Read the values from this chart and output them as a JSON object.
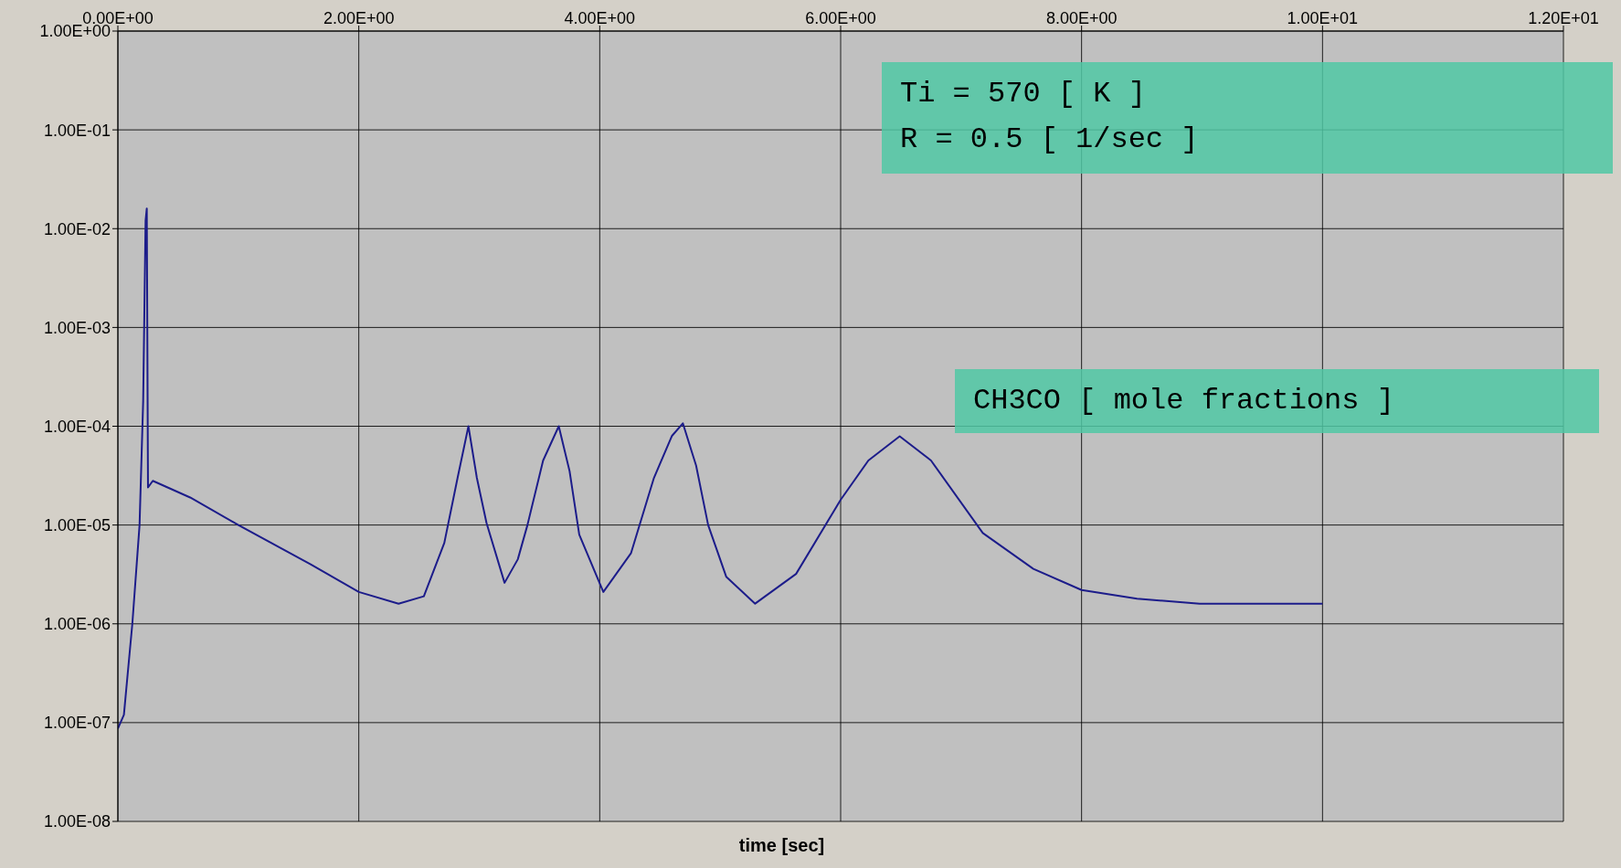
{
  "chart_data": {
    "type": "line",
    "xlabel": "time [sec]",
    "x": [
      0,
      0.05,
      0.12,
      0.18,
      0.21,
      0.23,
      0.24,
      0.25,
      0.29,
      0.6,
      1.0,
      1.6,
      2.0,
      2.33,
      2.54,
      2.71,
      2.82,
      2.91,
      2.98,
      3.06,
      3.21,
      3.32,
      3.4,
      3.53,
      3.66,
      3.75,
      3.83,
      4.03,
      4.26,
      4.45,
      4.6,
      4.69,
      4.8,
      4.9,
      5.05,
      5.29,
      5.63,
      6.0,
      6.23,
      6.49,
      6.75,
      7.18,
      7.6,
      8.0,
      8.46,
      8.98,
      10.0
    ],
    "series": [
      {
        "color": "#1c1c8a",
        "values": [
          8.7e-08,
          1.2e-07,
          1e-06,
          1e-05,
          0.00018,
          0.012,
          0.016,
          2.4e-05,
          2.8e-05,
          1.9e-05,
          1e-05,
          4e-06,
          2.1e-06,
          1.6e-06,
          1.9e-06,
          6.6e-06,
          3e-05,
          0.0001,
          3e-05,
          1.05e-05,
          2.6e-06,
          4.5e-06,
          1e-05,
          4.5e-05,
          0.0001,
          3.5e-05,
          8e-06,
          2.1e-06,
          5.2e-06,
          3e-05,
          8e-05,
          0.000107,
          4e-05,
          1e-05,
          3e-06,
          1.6e-06,
          3.2e-06,
          1.8e-05,
          4.5e-05,
          7.9e-05,
          4.5e-05,
          8.3e-06,
          3.6e-06,
          2.2e-06,
          1.8e-06,
          1.6e-06,
          1.6e-06
        ]
      }
    ],
    "log": "y",
    "xlim": [
      0,
      12
    ],
    "ylim": [
      1e-08,
      1
    ],
    "xticks": [
      {
        "value": 0,
        "label": "0.00E+00"
      },
      {
        "value": 2,
        "label": "2.00E+00"
      },
      {
        "value": 4,
        "label": "4.00E+00"
      },
      {
        "value": 6,
        "label": "6.00E+00"
      },
      {
        "value": 8,
        "label": "8.00E+00"
      },
      {
        "value": 10,
        "label": "1.00E+01"
      },
      {
        "value": 12,
        "label": "1.20E+01"
      }
    ],
    "yticks": [
      {
        "value": 1e-08,
        "label": "1.00E-08"
      },
      {
        "value": 1e-07,
        "label": "1.00E-07"
      },
      {
        "value": 1e-06,
        "label": "1.00E-06"
      },
      {
        "value": 1e-05,
        "label": "1.00E-05"
      },
      {
        "value": 0.0001,
        "label": "1.00E-04"
      },
      {
        "value": 0.001,
        "label": "1.00E-03"
      },
      {
        "value": 0.01,
        "label": "1.00E-02"
      },
      {
        "value": 0.1,
        "label": "1.00E-01"
      },
      {
        "value": 1,
        "label": "1.00E+00"
      }
    ],
    "grid": true,
    "annotations": [
      "Ti = 570 [ K ]",
      "R = 0.5 [ 1/sec ]",
      "CH3CO [ mole fractions ]"
    ]
  }
}
